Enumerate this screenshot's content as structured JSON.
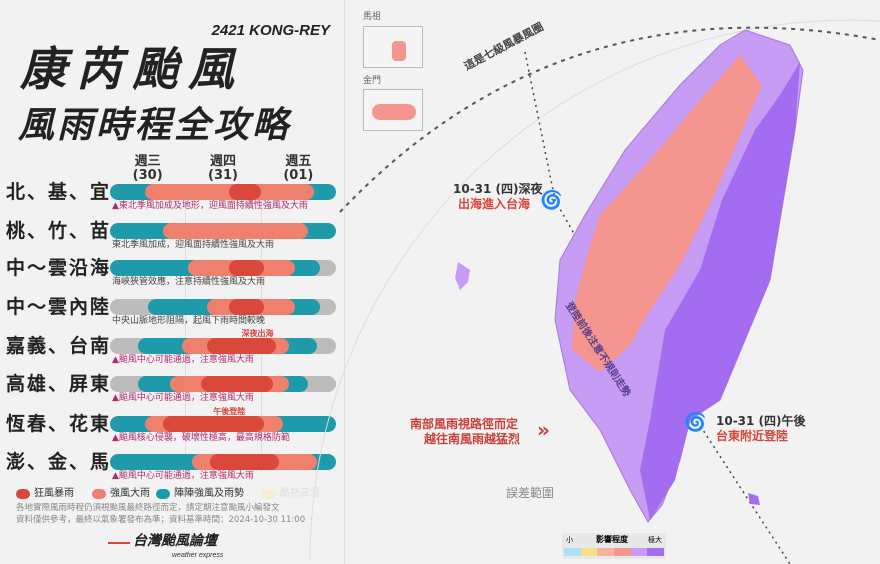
{
  "header": {
    "subtitle": "2421 KONG-REY",
    "title": "康芮颱風",
    "title2": "風雨時程全攻略"
  },
  "timeline": {
    "days": [
      {
        "name": "週三",
        "date": "(30)"
      },
      {
        "name": "週四",
        "date": "(31)"
      },
      {
        "name": "週五",
        "date": "(01)"
      }
    ],
    "range": [
      "10-30 00:00",
      "11-02 00:00"
    ],
    "rows": [
      {
        "region": "北、基、宜",
        "note": "▲東北季風加成及地形，迎風面持續性強風及大雨",
        "warn": true,
        "segments": [
          [
            "teal",
            "10-30 00:00",
            "11-02 00:00"
          ],
          [
            "pink",
            "10-30 11:00",
            "11-01 17:00"
          ],
          [
            "red",
            "10-31 14:00",
            "11-01 00:00"
          ]
        ]
      },
      {
        "region": "桃、竹、苗",
        "note": "東北季風加成，迎風面持續性強風及大雨",
        "warn": false,
        "segments": [
          [
            "teal",
            "10-30 00:00",
            "11-02 00:00"
          ],
          [
            "pink",
            "10-30 17:00",
            "11-01 15:00"
          ]
        ]
      },
      {
        "region": "中～雲沿海",
        "note": "海峽狹管效應，注意持續性強風及大雨",
        "warn": false,
        "segments": [
          [
            "gray",
            "10-30 00:00",
            "11-02 00:00"
          ],
          [
            "teal",
            "10-30 00:00",
            "11-01 19:00"
          ],
          [
            "pink",
            "10-31 01:00",
            "11-01 11:00"
          ],
          [
            "red",
            "10-31 14:00",
            "11-01 01:00"
          ]
        ]
      },
      {
        "region": "中～雲內陸",
        "note": "中央山脈地形阻隔，起風下雨時間較晚",
        "warn": false,
        "segments": [
          [
            "gray",
            "10-30 00:00",
            "11-02 00:00"
          ],
          [
            "teal",
            "10-30 12:00",
            "11-01 19:00"
          ],
          [
            "pink",
            "10-31 07:00",
            "11-01 11:00"
          ],
          [
            "red",
            "10-31 14:00",
            "11-01 01:00"
          ]
        ]
      },
      {
        "region": "嘉義、台南",
        "note": "▲颱風中心可能通過，注意強風大雨",
        "warn": true,
        "mark": "深夜出海",
        "mark_time": "10-31 23:00",
        "segments": [
          [
            "gray",
            "10-30 00:00",
            "11-02 00:00"
          ],
          [
            "teal",
            "10-30 09:00",
            "11-01 18:00"
          ],
          [
            "pink",
            "10-30 23:00",
            "11-01 09:00"
          ],
          [
            "red",
            "10-31 07:00",
            "11-01 05:00"
          ]
        ]
      },
      {
        "region": "高雄、屏東",
        "note": "▲颱風中心可能通過，注意強風大雨",
        "warn": true,
        "segments": [
          [
            "gray",
            "10-30 00:00",
            "11-02 00:00"
          ],
          [
            "teal",
            "10-30 09:00",
            "11-01 15:00"
          ],
          [
            "pink",
            "10-30 19:00",
            "11-01 09:00"
          ],
          [
            "red",
            "10-31 05:00",
            "11-01 04:00"
          ]
        ]
      },
      {
        "region": "恆春、花東",
        "note": "▲颱風核心侵襲，破壞性極高，最高規格防範",
        "warn": true,
        "mark": "午後登陸",
        "mark_time": "10-31 14:00",
        "segments": [
          [
            "teal",
            "10-30 00:00",
            "11-02 00:00"
          ],
          [
            "pink",
            "10-30 11:00",
            "11-01 07:00"
          ],
          [
            "red",
            "10-30 17:00",
            "11-01 01:00"
          ]
        ]
      },
      {
        "region": "澎、金、馬",
        "note": "▲颱風中心可能通過，注意強風大雨",
        "warn": true,
        "segments": [
          [
            "teal",
            "10-30 00:00",
            "11-02 00:00"
          ],
          [
            "pink",
            "10-31 02:00",
            "11-01 18:00"
          ],
          [
            "red",
            "10-31 08:00",
            "11-01 06:00"
          ]
        ]
      }
    ]
  },
  "legend": [
    {
      "label": "狂風暴雨",
      "color": "#d9483b"
    },
    {
      "label": "強風大雨",
      "color": "#f0806e"
    },
    {
      "label": "陣陣強風及雨勢",
      "color": "#1f9aaa"
    },
    {
      "label": "酷熱高溫",
      "color": "#f7edd0",
      "faded": true
    }
  ],
  "colors": {
    "red": "#d9483b",
    "pink": "#f0806e",
    "teal": "#1f9aaa",
    "gray": "#bcbcbc",
    "warn": "#b02a6a",
    "purple_light": "#c79cf5",
    "purple_dark": "#a46cf0",
    "map_pink": "#f49590"
  },
  "footer": {
    "line1": "各地實際風雨時程仍須視颱風最終路徑而定，請定期注意颱風小編發文",
    "line2": "資料僅供參考，最終以氣象署發布為準；資料基準時間：2024-10-30 11:00"
  },
  "logo": {
    "name": "台灣颱風論壇",
    "tagline": "weather express"
  },
  "map": {
    "inset_matsu": "馬祖",
    "inset_kinmen": "金門",
    "circle_label": "這是七級風暴風圈",
    "point1": {
      "time": "10-31 (四)深夜",
      "desc": "出海進入台海"
    },
    "point2": {
      "time": "10-31 (四)午後",
      "desc": "台東附近登陸"
    },
    "track_note": "登陸前後注意不規則走勢",
    "south_note1": "南部風雨視路徑而定",
    "south_note2": "越往南風雨越猛烈",
    "error_label": "誤差範圍",
    "scale": {
      "title": "影響程度",
      "low": "小",
      "high": "極大",
      "colors": [
        "#aee0f5",
        "#f7e08a",
        "#f2b49a",
        "#f49590",
        "#c79cf5",
        "#a46cf0"
      ]
    }
  }
}
